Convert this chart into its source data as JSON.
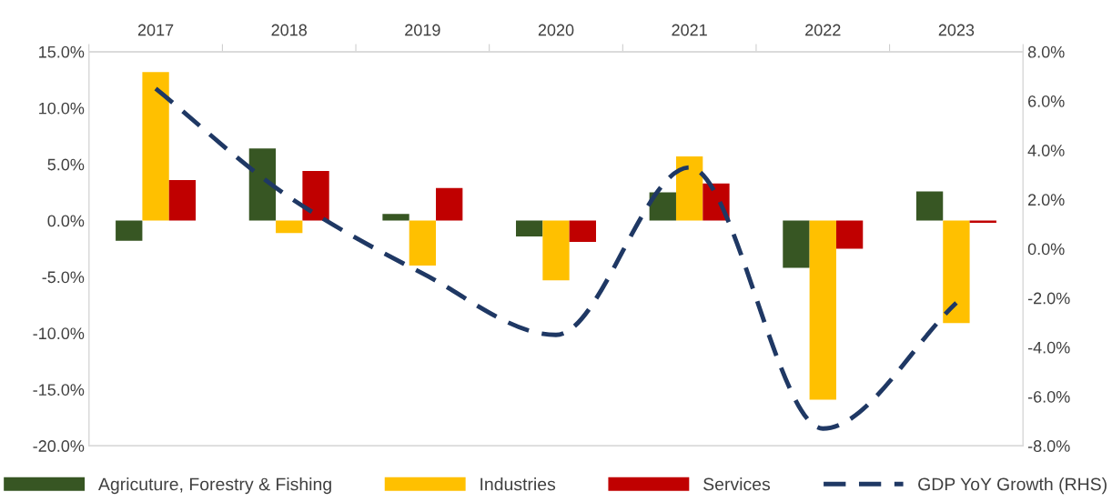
{
  "chart_data": {
    "type": "bar",
    "categories": [
      "2017",
      "2018",
      "2019",
      "2020",
      "2021",
      "2022",
      "2023"
    ],
    "series": [
      {
        "name": "Agricuture, Forestry & Fishing",
        "color": "#375623",
        "values": [
          -1.8,
          6.4,
          0.6,
          -1.4,
          2.5,
          -4.2,
          2.6
        ]
      },
      {
        "name": "Industries",
        "color": "#ffc000",
        "values": [
          13.2,
          -1.1,
          -4.0,
          -5.3,
          5.7,
          -15.9,
          -9.1
        ]
      },
      {
        "name": "Services",
        "color": "#c00000",
        "values": [
          3.6,
          4.4,
          2.9,
          -1.9,
          3.3,
          -2.5,
          -0.2
        ]
      },
      {
        "name": "GDP YoY Growth (RHS)",
        "type": "line",
        "axis": "y2",
        "color": "#1f3864",
        "line_style": "dashed",
        "values": [
          6.5,
          2.1,
          -1.0,
          -3.5,
          3.3,
          -7.3,
          -2.2
        ]
      }
    ],
    "ylim": [
      -20,
      15
    ],
    "yticks": [
      {
        "value": -20,
        "label": "-20.0%"
      },
      {
        "value": -15,
        "label": "-15.0%"
      },
      {
        "value": -10,
        "label": "-10.0%"
      },
      {
        "value": -5,
        "label": "-5.0%"
      },
      {
        "value": 0,
        "label": "0.0%"
      },
      {
        "value": 5,
        "label": "5.0%"
      },
      {
        "value": 10,
        "label": "10.0%"
      },
      {
        "value": 15,
        "label": "15.0%"
      }
    ],
    "y2lim": [
      -8,
      8
    ],
    "y2ticks": [
      {
        "value": -8,
        "label": "-8.0%"
      },
      {
        "value": -6,
        "label": "-6.0%"
      },
      {
        "value": -4,
        "label": "-4.0%"
      },
      {
        "value": -2,
        "label": "-2.0%"
      },
      {
        "value": 0,
        "label": "0.0%"
      },
      {
        "value": 2,
        "label": "2.0%"
      },
      {
        "value": 4,
        "label": "4.0%"
      },
      {
        "value": 6,
        "label": "6.0%"
      },
      {
        "value": 8,
        "label": "8.0%"
      }
    ],
    "grid": false,
    "legend": "bottom"
  }
}
